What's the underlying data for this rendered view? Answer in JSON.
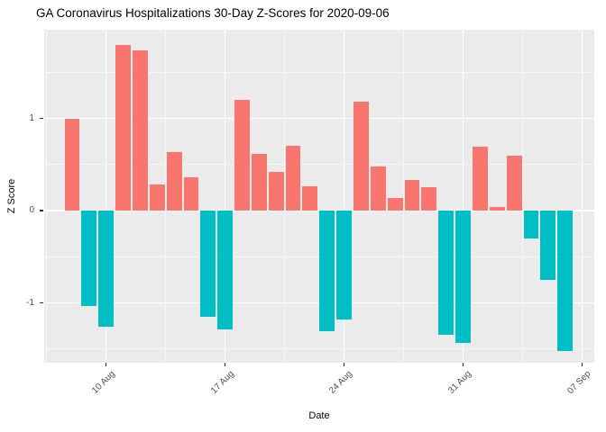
{
  "chart_data": {
    "type": "bar",
    "title": "GA Coronavirus Hospitalizations 30-Day Z-Scores for 2020-09-06",
    "xlabel": "Date",
    "ylabel": "Z Score",
    "dates": [
      "2020-08-08",
      "2020-08-09",
      "2020-08-10",
      "2020-08-11",
      "2020-08-12",
      "2020-08-13",
      "2020-08-14",
      "2020-08-15",
      "2020-08-16",
      "2020-08-17",
      "2020-08-18",
      "2020-08-19",
      "2020-08-20",
      "2020-08-21",
      "2020-08-22",
      "2020-08-23",
      "2020-08-24",
      "2020-08-25",
      "2020-08-26",
      "2020-08-27",
      "2020-08-28",
      "2020-08-29",
      "2020-08-30",
      "2020-08-31",
      "2020-09-01",
      "2020-09-02",
      "2020-09-03",
      "2020-09-04",
      "2020-09-05",
      "2020-09-06"
    ],
    "values": [
      1.0,
      -1.03,
      -1.26,
      1.8,
      1.74,
      0.28,
      0.63,
      0.36,
      -1.15,
      -1.29,
      1.2,
      0.61,
      0.42,
      0.7,
      0.26,
      -1.31,
      -1.18,
      1.18,
      0.48,
      0.14,
      0.33,
      0.25,
      -1.35,
      -1.43,
      0.69,
      0.04,
      0.6,
      -0.3,
      -0.75,
      -1.52
    ],
    "xticks": [
      {
        "label": "10 Aug",
        "day_index": 2
      },
      {
        "label": "17 Aug",
        "day_index": 9
      },
      {
        "label": "24 Aug",
        "day_index": 16
      },
      {
        "label": "31 Aug",
        "day_index": 23
      },
      {
        "label": "07 Sep",
        "day_index": 30
      }
    ],
    "yticks": [
      {
        "label": "-1",
        "value": -1
      },
      {
        "label": "0",
        "value": 0
      },
      {
        "label": "1",
        "value": 1
      }
    ],
    "minor_yticks": [
      -1.5,
      -0.5,
      0.5,
      1.5
    ],
    "minor_xtick_day_indices": [
      -1.5,
      5.5,
      12.5,
      19.5,
      26.5
    ],
    "ylim": [
      -1.65,
      1.96
    ],
    "legend": "none",
    "grid": "on",
    "colors": {
      "positive_bar": "#F8766D",
      "negative_bar": "#00BFC4",
      "panel_background": "#EBEBEB",
      "gridline": "#FFFFFF",
      "tick_text": "#4d4d4d",
      "tick_mark": "#333333",
      "title_text": "#000000"
    }
  }
}
